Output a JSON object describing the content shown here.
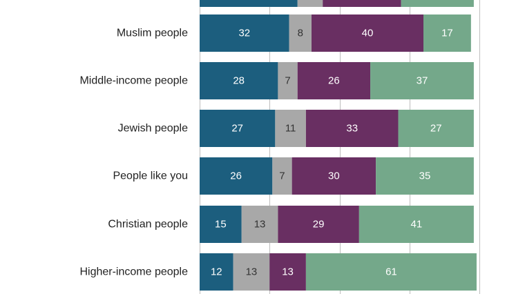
{
  "chart_data": {
    "type": "bar",
    "orientation": "horizontal",
    "stacked": true,
    "categories": [
      "",
      "Muslim people",
      "Middle-income people",
      "Jewish people",
      "People like you",
      "Christian people",
      "Higher-income people"
    ],
    "series": [
      {
        "values": [
          35,
          32,
          28,
          27,
          26,
          15,
          12
        ],
        "color": "#1c5e7e",
        "label_color": "#ffffff"
      },
      {
        "values": [
          9,
          8,
          7,
          11,
          7,
          13,
          13
        ],
        "color": "#a8a8a8",
        "label_color": "#333333"
      },
      {
        "values": [
          28,
          40,
          26,
          33,
          30,
          29,
          13
        ],
        "color": "#692f62",
        "label_color": "#ffffff"
      },
      {
        "values": [
          26,
          17,
          37,
          27,
          35,
          41,
          61
        ],
        "color": "#74a88a",
        "label_color": "#ffffff"
      }
    ],
    "xlim": [
      0,
      100
    ],
    "grid": true,
    "legend": "none"
  }
}
